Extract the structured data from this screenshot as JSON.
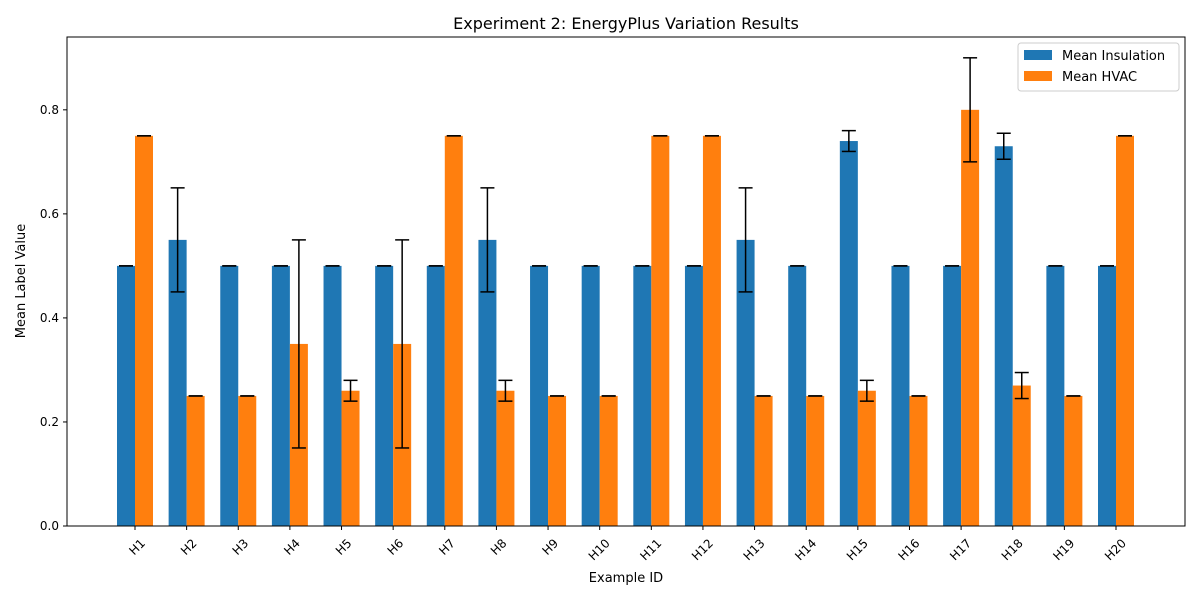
{
  "chart_data": {
    "type": "bar",
    "title": "Experiment 2: EnergyPlus Variation Results",
    "xlabel": "Example ID",
    "ylabel": "Mean Label Value",
    "categories": [
      "H1",
      "H2",
      "H3",
      "H4",
      "H5",
      "H6",
      "H7",
      "H8",
      "H9",
      "H10",
      "H11",
      "H12",
      "H13",
      "H14",
      "H15",
      "H16",
      "H17",
      "H18",
      "H19",
      "H20"
    ],
    "ylim": [
      0,
      0.94
    ],
    "yticks": [
      0.0,
      0.2,
      0.4,
      0.6,
      0.8
    ],
    "ytick_labels": [
      "0.0",
      "0.2",
      "0.4",
      "0.6",
      "0.8"
    ],
    "grid": false,
    "legend_position": "top-right",
    "series": [
      {
        "name": "Mean Insulation",
        "color": "#1f77b4",
        "values": [
          0.5,
          0.55,
          0.5,
          0.5,
          0.5,
          0.5,
          0.5,
          0.55,
          0.5,
          0.5,
          0.5,
          0.5,
          0.55,
          0.5,
          0.74,
          0.5,
          0.5,
          0.73,
          0.5,
          0.5
        ],
        "errors": [
          0,
          0.1,
          0,
          0,
          0,
          0,
          0,
          0.1,
          0,
          0,
          0,
          0,
          0.1,
          0,
          0.02,
          0,
          0,
          0.025,
          0,
          0
        ]
      },
      {
        "name": "Mean HVAC",
        "color": "#ff7f0e",
        "values": [
          0.75,
          0.25,
          0.25,
          0.35,
          0.26,
          0.35,
          0.75,
          0.26,
          0.25,
          0.25,
          0.75,
          0.75,
          0.25,
          0.25,
          0.26,
          0.25,
          0.8,
          0.27,
          0.25,
          0.75
        ],
        "errors": [
          0,
          0,
          0,
          0.2,
          0.02,
          0.2,
          0,
          0.02,
          0,
          0,
          0,
          0,
          0,
          0,
          0.02,
          0,
          0.1,
          0.025,
          0,
          0
        ]
      }
    ]
  }
}
